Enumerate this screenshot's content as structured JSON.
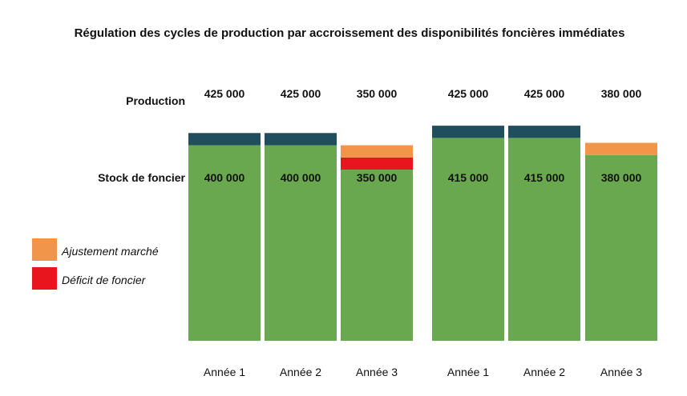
{
  "chart_data": {
    "type": "bar",
    "title": "Régulation des cycles de production par accroissement des disponibilités foncières immédiates",
    "row_labels": {
      "production": "Production",
      "stock": "Stock de foncier"
    },
    "categories": [
      "Année 1",
      "Année 2",
      "Année 3",
      "Année 1",
      "Année 2",
      "Année 3"
    ],
    "production_labels": [
      "425 000",
      "425 000",
      "350 000",
      "425 000",
      "425 000",
      "380 000"
    ],
    "stock_labels": [
      "400 000",
      "400 000",
      "350 000",
      "415 000",
      "415 000",
      "380 000"
    ],
    "series": [
      {
        "key": "stock",
        "values": [
          400000,
          400000,
          350000,
          415000,
          415000,
          380000
        ],
        "color": "#6aa84f"
      },
      {
        "key": "deficit",
        "name": "Déficit de foncier",
        "values": [
          0,
          0,
          25000,
          0,
          0,
          0
        ],
        "color": "#e8141e"
      },
      {
        "key": "ajustement",
        "name": "Ajustement marché",
        "values": [
          0,
          0,
          25000,
          0,
          0,
          25000
        ],
        "color": "#f0954a"
      },
      {
        "key": "supplement",
        "values": [
          25000,
          25000,
          0,
          25000,
          25000,
          0
        ],
        "color": "#214e5e"
      }
    ],
    "groups": 2,
    "legend": [
      {
        "label": "Ajustement marché",
        "color": "#f0954a"
      },
      {
        "label": "Déficit de foncier",
        "color": "#e8141e"
      }
    ],
    "legend_position": "left",
    "ylim": [
      0,
      450000
    ],
    "grid": false
  }
}
